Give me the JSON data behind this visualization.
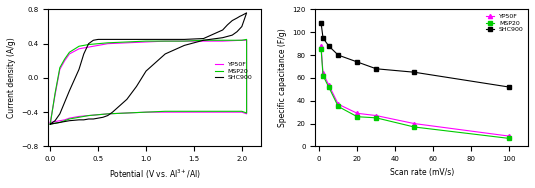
{
  "cv": {
    "YP50F": {
      "color": "#ff00ff",
      "x": [
        0.0,
        0.05,
        0.1,
        0.15,
        0.2,
        0.3,
        0.4,
        0.5,
        0.6,
        0.8,
        1.0,
        1.2,
        1.4,
        1.6,
        1.8,
        2.0,
        2.05,
        2.05,
        2.0,
        1.8,
        1.6,
        1.4,
        1.2,
        1.0,
        0.8,
        0.6,
        0.5,
        0.4,
        0.3,
        0.2,
        0.15,
        0.1,
        0.05,
        0.0
      ],
      "y": [
        -0.52,
        -0.51,
        -0.5,
        -0.49,
        -0.47,
        -0.45,
        -0.44,
        -0.43,
        -0.42,
        -0.41,
        -0.4,
        -0.4,
        -0.4,
        -0.4,
        -0.4,
        -0.4,
        -0.42,
        0.44,
        0.44,
        0.43,
        0.43,
        0.43,
        0.43,
        0.42,
        0.41,
        0.4,
        0.38,
        0.36,
        0.34,
        0.28,
        0.2,
        0.1,
        -0.2,
        -0.52
      ]
    },
    "MSP20": {
      "color": "#00cc00",
      "x": [
        0.0,
        0.05,
        0.1,
        0.15,
        0.2,
        0.3,
        0.4,
        0.5,
        0.6,
        0.8,
        1.0,
        1.2,
        1.4,
        1.6,
        1.8,
        2.0,
        2.05,
        2.05,
        2.0,
        1.8,
        1.6,
        1.4,
        1.2,
        1.0,
        0.8,
        0.6,
        0.5,
        0.4,
        0.3,
        0.2,
        0.15,
        0.1,
        0.05,
        0.0
      ],
      "y": [
        -0.54,
        -0.53,
        -0.52,
        -0.5,
        -0.48,
        -0.46,
        -0.44,
        -0.43,
        -0.42,
        -0.41,
        -0.4,
        -0.39,
        -0.39,
        -0.39,
        -0.39,
        -0.39,
        -0.41,
        0.45,
        0.44,
        0.44,
        0.44,
        0.43,
        0.43,
        0.43,
        0.42,
        0.41,
        0.4,
        0.39,
        0.37,
        0.3,
        0.22,
        0.12,
        -0.18,
        -0.54
      ]
    },
    "SHC900": {
      "color": "#000000",
      "x": [
        0.0,
        0.05,
        0.1,
        0.2,
        0.3,
        0.35,
        0.4,
        0.45,
        0.5,
        0.55,
        0.6,
        0.65,
        0.7,
        0.8,
        0.9,
        1.0,
        1.2,
        1.4,
        1.6,
        1.8,
        1.9,
        1.95,
        2.0,
        2.05,
        2.05,
        2.0,
        1.98,
        1.95,
        1.9,
        1.85,
        1.8,
        1.6,
        1.4,
        1.2,
        1.0,
        0.8,
        0.6,
        0.55,
        0.5,
        0.45,
        0.4,
        0.35,
        0.3,
        0.2,
        0.1,
        0.05,
        0.0
      ],
      "y": [
        -0.54,
        -0.53,
        -0.52,
        -0.5,
        -0.49,
        -0.49,
        -0.48,
        -0.48,
        -0.47,
        -0.46,
        -0.44,
        -0.4,
        -0.35,
        -0.25,
        -0.1,
        0.08,
        0.28,
        0.38,
        0.44,
        0.47,
        0.5,
        0.54,
        0.6,
        0.76,
        0.76,
        0.73,
        0.72,
        0.7,
        0.67,
        0.62,
        0.56,
        0.46,
        0.45,
        0.45,
        0.45,
        0.45,
        0.45,
        0.45,
        0.45,
        0.44,
        0.4,
        0.28,
        0.1,
        -0.15,
        -0.42,
        -0.5,
        -0.54
      ]
    }
  },
  "sc": {
    "scan_rates": [
      1,
      2,
      5,
      10,
      20,
      30,
      50,
      100
    ],
    "YP50F": {
      "color": "#ff00ff",
      "marker": "^",
      "values": [
        88,
        64,
        54,
        37,
        29,
        27,
        20,
        9
      ]
    },
    "MSP20": {
      "color": "#00cc00",
      "marker": "s",
      "values": [
        85,
        62,
        52,
        35,
        26,
        25,
        17,
        7
      ]
    },
    "SHC900": {
      "color": "#000000",
      "marker": "s",
      "values": [
        108,
        95,
        88,
        80,
        74,
        68,
        65,
        52
      ]
    }
  },
  "cv_xlabel": "Potential (V vs. Al$^{3+}$/Al)",
  "cv_ylabel": "Current density (A/g)",
  "cv_xlim": [
    -0.02,
    2.2
  ],
  "cv_ylim": [
    -0.8,
    0.8
  ],
  "cv_xticks": [
    0.0,
    0.5,
    1.0,
    1.5,
    2.0
  ],
  "cv_yticks": [
    -0.8,
    -0.4,
    0.0,
    0.4,
    0.8
  ],
  "sc_xlabel": "Scan rate (mV/s)",
  "sc_ylabel": "Specific capacitance (F/g)",
  "sc_xlim": [
    -2,
    110
  ],
  "sc_ylim": [
    0,
    120
  ],
  "sc_xticks": [
    0,
    20,
    40,
    60,
    80,
    100
  ],
  "sc_yticks": [
    0,
    20,
    40,
    60,
    80,
    100,
    120
  ],
  "legend_labels": [
    "YP50F",
    "MSP20",
    "SHC900"
  ],
  "legend_colors": [
    "#ff00ff",
    "#00cc00",
    "#000000"
  ]
}
